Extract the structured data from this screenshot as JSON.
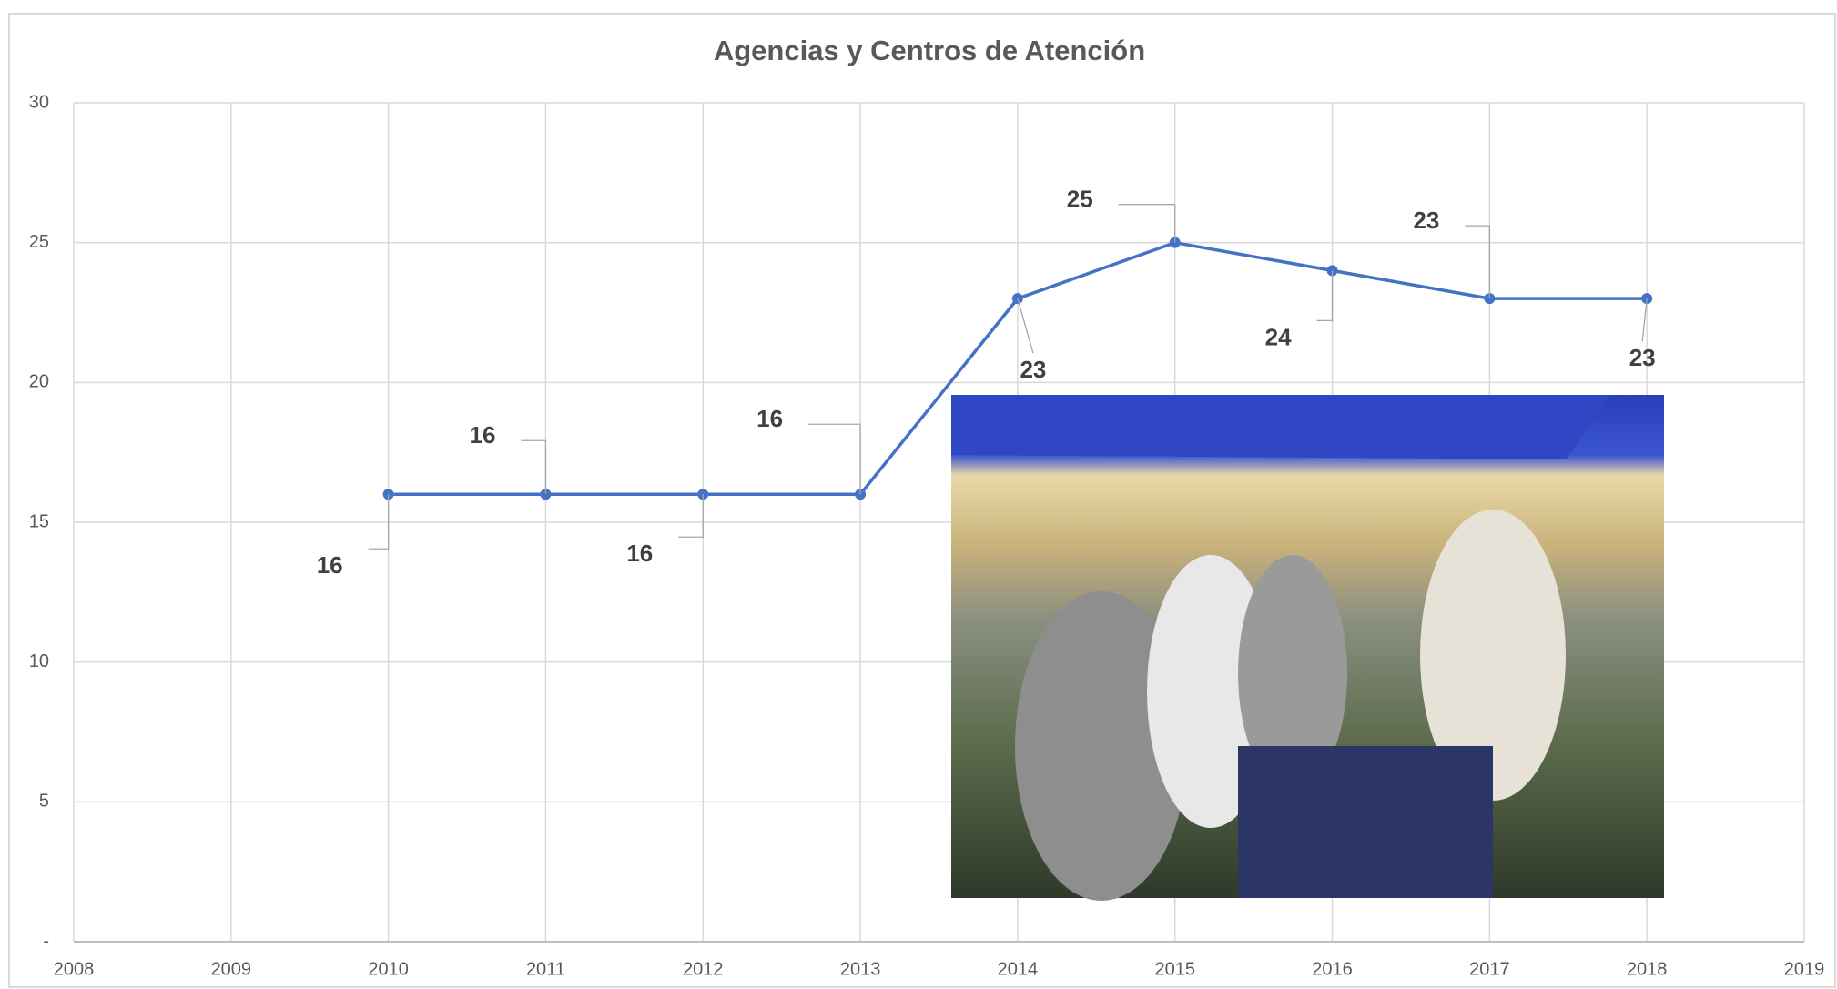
{
  "chart_data": {
    "type": "line",
    "title": "Agencias y Centros de Atención",
    "x": [
      2010,
      2011,
      2012,
      2013,
      2014,
      2015,
      2016,
      2017,
      2018
    ],
    "series": [
      {
        "name": "Agencias y Centros de Atención",
        "color": "#4472c4",
        "values": [
          16,
          16,
          16,
          16,
          23,
          25,
          24,
          23,
          23
        ]
      }
    ],
    "xlim": [
      2008,
      2019
    ],
    "xticks": [
      2008,
      2009,
      2010,
      2011,
      2012,
      2013,
      2014,
      2015,
      2016,
      2017,
      2018,
      2019
    ],
    "ylim": [
      0,
      30
    ],
    "yticks": [
      {
        "value": 0,
        "label": "-"
      },
      5,
      10,
      15,
      20,
      25,
      30
    ],
    "grid": true,
    "data_labels": true
  }
}
